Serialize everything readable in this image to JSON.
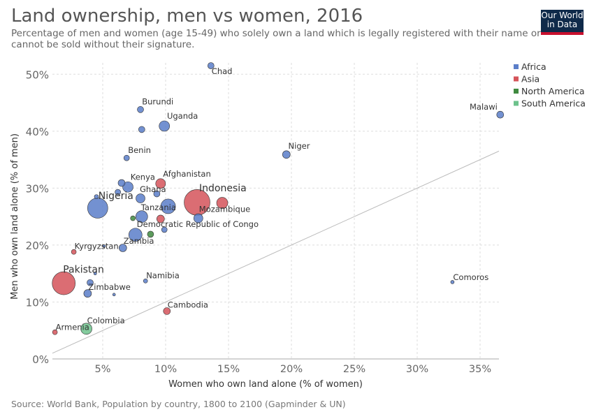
{
  "header": {
    "title": "Land ownership, men vs women, 2016",
    "subtitle": "Percentage of men and women (age 15-49) who solely own a land which is legally registered with their name or cannot be sold without their signature.",
    "logo_line1": "Our World",
    "logo_line2": "in Data"
  },
  "footer": {
    "source": "Source: World Bank, Population by country, 1800 to 2100 (Gapminder & UN)"
  },
  "chart_data": {
    "type": "scatter",
    "title": "Land ownership, men vs women, 2016",
    "xlabel": "Women who own land alone (% of women)",
    "ylabel": "Men who own land alone (% of men)",
    "xlim": [
      1,
      36.5
    ],
    "ylim": [
      0,
      52
    ],
    "x_ticks": [
      5,
      10,
      15,
      20,
      25,
      30,
      35
    ],
    "x_tick_labels": [
      "5%",
      "10%",
      "15%",
      "20%",
      "25%",
      "30%",
      "35%"
    ],
    "y_ticks": [
      0,
      10,
      20,
      30,
      40,
      50
    ],
    "y_tick_labels": [
      "0%",
      "10%",
      "20%",
      "30%",
      "40%",
      "50%"
    ],
    "grid": true,
    "legend_position": "top-right",
    "reference_line": "y = x",
    "colors": {
      "Africa": "#5b7ec9",
      "Asia": "#d5545a",
      "North America": "#3f8a3f",
      "South America": "#6dc28c"
    },
    "legend": [
      "Africa",
      "Asia",
      "North America",
      "South America"
    ],
    "points": [
      {
        "label": "Chad",
        "region": "Africa",
        "x": 13.6,
        "y": 51.5,
        "size": 4.5
      },
      {
        "label": "Burundi",
        "region": "Africa",
        "x": 8.0,
        "y": 43.8,
        "size": 4.5
      },
      {
        "label": "Uganda",
        "region": "Africa",
        "x": 9.9,
        "y": 40.9,
        "size": 7.5
      },
      {
        "label": "",
        "region": "Africa",
        "x": 8.1,
        "y": 40.3,
        "size": 4.5
      },
      {
        "label": "Malawi",
        "region": "Africa",
        "x": 36.6,
        "y": 42.9,
        "size": 5
      },
      {
        "label": "Niger",
        "region": "Africa",
        "x": 19.6,
        "y": 35.9,
        "size": 5.5
      },
      {
        "label": "Benin",
        "region": "Africa",
        "x": 6.9,
        "y": 35.3,
        "size": 4
      },
      {
        "label": "Kenya",
        "region": "Africa",
        "x": 7.0,
        "y": 30.2,
        "size": 7.5
      },
      {
        "label": "",
        "region": "Africa",
        "x": 6.5,
        "y": 30.9,
        "size": 5
      },
      {
        "label": "",
        "region": "Africa",
        "x": 6.2,
        "y": 29.3,
        "size": 4
      },
      {
        "label": "Ghana",
        "region": "Africa",
        "x": 8.0,
        "y": 28.2,
        "size": 6.5
      },
      {
        "label": "",
        "region": "Africa",
        "x": 9.3,
        "y": 29.0,
        "size": 4.5
      },
      {
        "label": "",
        "region": "Africa",
        "x": 4.5,
        "y": 28.5,
        "size": 3
      },
      {
        "label": "Nigeria",
        "region": "Africa",
        "x": 4.6,
        "y": 26.5,
        "size": 14.5
      },
      {
        "label": "",
        "region": "Africa",
        "x": 10.2,
        "y": 26.8,
        "size": 10.5
      },
      {
        "label": "Tanzania",
        "region": "Africa",
        "x": 8.1,
        "y": 25.0,
        "size": 8.5
      },
      {
        "label": "Mozambique",
        "region": "Africa",
        "x": 12.6,
        "y": 24.7,
        "size": 6.5
      },
      {
        "label": "Democratic Republic of Congo",
        "region": "Africa",
        "x": 7.6,
        "y": 21.8,
        "size": 9.5
      },
      {
        "label": "",
        "region": "Africa",
        "x": 9.9,
        "y": 22.7,
        "size": 4
      },
      {
        "label": "Zambia",
        "region": "Africa",
        "x": 6.6,
        "y": 19.5,
        "size": 5.5
      },
      {
        "label": "",
        "region": "Africa",
        "x": 5.1,
        "y": 19.8,
        "size": 2
      },
      {
        "label": "",
        "region": "Africa",
        "x": 4.4,
        "y": 15.0,
        "size": 2
      },
      {
        "label": "",
        "region": "Africa",
        "x": 4.0,
        "y": 13.4,
        "size": 4.5
      },
      {
        "label": "Namibia",
        "region": "Africa",
        "x": 8.4,
        "y": 13.7,
        "size": 3
      },
      {
        "label": "Zimbabwe",
        "region": "Africa",
        "x": 3.8,
        "y": 11.5,
        "size": 5.5
      },
      {
        "label": "",
        "region": "Africa",
        "x": 5.9,
        "y": 11.3,
        "size": 2
      },
      {
        "label": "Comoros",
        "region": "Africa",
        "x": 32.8,
        "y": 13.5,
        "size": 2.5
      },
      {
        "label": "Afghanistan",
        "region": "Asia",
        "x": 9.6,
        "y": 30.8,
        "size": 7
      },
      {
        "label": "Indonesia",
        "region": "Asia",
        "x": 12.5,
        "y": 27.5,
        "size": 18.5
      },
      {
        "label": "",
        "region": "Asia",
        "x": 14.5,
        "y": 27.4,
        "size": 8
      },
      {
        "label": "",
        "region": "Asia",
        "x": 9.6,
        "y": 24.6,
        "size": 5.5
      },
      {
        "label": "Kyrgyzstan",
        "region": "Asia",
        "x": 2.7,
        "y": 18.8,
        "size": 3.5
      },
      {
        "label": "Pakistan",
        "region": "Asia",
        "x": 1.9,
        "y": 13.3,
        "size": 16.5
      },
      {
        "label": "Cambodia",
        "region": "Asia",
        "x": 10.1,
        "y": 8.4,
        "size": 5
      },
      {
        "label": "Armenia",
        "region": "Asia",
        "x": 1.2,
        "y": 4.7,
        "size": 3.5
      },
      {
        "label": "",
        "region": "North America",
        "x": 7.4,
        "y": 24.7,
        "size": 3.5
      },
      {
        "label": "",
        "region": "North America",
        "x": 8.8,
        "y": 21.9,
        "size": 4.5
      },
      {
        "label": "Colombia",
        "region": "South America",
        "x": 3.7,
        "y": 5.3,
        "size": 8
      }
    ]
  }
}
